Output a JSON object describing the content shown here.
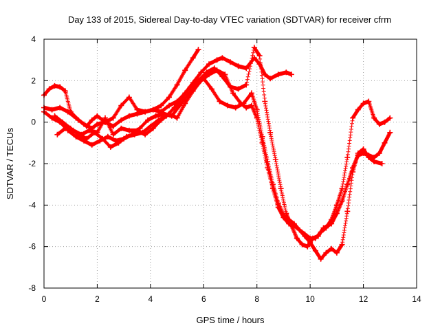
{
  "chart_data": {
    "type": "scatter",
    "title": "Day 133 of 2015, Sidereal Day-to-day VTEC variation (SDTVAR) for receiver cfrm",
    "xlabel": "GPS time / hours",
    "ylabel": "SDTVAR / TECUs",
    "xlim": [
      0,
      14
    ],
    "ylim": [
      -8,
      4
    ],
    "xticks": [
      "0",
      "2",
      "4",
      "6",
      "8",
      "10",
      "12",
      "14"
    ],
    "yticks": [
      "-8",
      "-6",
      "-4",
      "-2",
      "0",
      "2",
      "4"
    ],
    "grid": true,
    "legend": "none",
    "marker": "+",
    "color": "#ff0000",
    "series": [
      {
        "x": [
          0.0,
          0.2,
          0.4,
          0.6,
          0.8,
          1.0,
          1.3,
          1.6,
          1.8,
          2.0,
          2.3,
          2.6,
          2.9,
          3.2,
          3.5,
          3.8,
          4.1,
          4.4,
          4.7,
          5.0,
          5.3,
          5.6,
          5.8
        ],
        "y": [
          1.3,
          1.6,
          1.75,
          1.7,
          1.5,
          0.5,
          0.1,
          -0.2,
          0.1,
          0.3,
          0.0,
          -0.2,
          0.1,
          0.3,
          0.4,
          0.5,
          0.6,
          0.8,
          1.2,
          1.8,
          2.5,
          3.1,
          3.5
        ]
      },
      {
        "x": [
          0.0,
          0.3,
          0.6,
          0.9,
          1.2,
          1.5,
          1.8,
          2.0,
          2.3,
          2.6,
          2.9,
          3.2,
          3.5,
          3.8,
          4.1,
          4.4,
          4.7,
          5.0,
          5.3,
          5.6,
          5.9,
          6.2,
          6.5,
          6.7,
          7.0,
          7.3,
          7.6,
          7.9,
          8.1,
          8.3,
          8.5,
          8.8,
          9.1,
          9.3
        ],
        "y": [
          0.7,
          0.6,
          0.7,
          0.5,
          0.2,
          -0.1,
          -0.3,
          -0.1,
          0.0,
          0.2,
          0.8,
          1.2,
          0.6,
          0.5,
          0.6,
          0.5,
          0.8,
          1.0,
          1.4,
          1.9,
          2.4,
          2.8,
          3.0,
          3.1,
          2.9,
          2.7,
          2.6,
          3.1,
          2.8,
          2.3,
          2.1,
          2.3,
          2.4,
          2.3
        ]
      },
      {
        "x": [
          0.4,
          0.7,
          1.0,
          1.3,
          1.6,
          1.9,
          2.2,
          2.5,
          2.8,
          3.1,
          3.4,
          3.7,
          4.0,
          4.3,
          4.6,
          4.9,
          5.2,
          5.5,
          5.8,
          6.1,
          6.4,
          6.7,
          7.0,
          7.3,
          7.6,
          7.9,
          8.1,
          8.3,
          8.5,
          8.7,
          8.9,
          9.1,
          9.3,
          9.5,
          9.7,
          9.9,
          10.1,
          10.3,
          10.5,
          10.8,
          11.0,
          11.2,
          11.4,
          11.6,
          11.8,
          12.0,
          12.2,
          12.4,
          12.6,
          12.8,
          13.0
        ],
        "y": [
          0.3,
          0.0,
          -0.3,
          -0.6,
          -0.8,
          -0.5,
          -0.8,
          -1.2,
          -1.0,
          -0.7,
          -0.6,
          -0.5,
          -0.2,
          0.1,
          0.3,
          0.7,
          1.2,
          1.7,
          2.0,
          2.4,
          2.6,
          2.2,
          1.7,
          1.6,
          1.8,
          3.6,
          3.2,
          1.0,
          -0.5,
          -1.8,
          -3.2,
          -4.4,
          -5.0,
          -5.6,
          -5.9,
          -6.0,
          -5.6,
          -5.5,
          -5.1,
          -4.9,
          -4.4,
          -3.8,
          -3.0,
          -2.2,
          -1.6,
          -1.5,
          -1.6,
          -1.7,
          -1.5,
          -1.0,
          -0.5
        ]
      },
      {
        "x": [
          0.0,
          0.3,
          0.6,
          0.9,
          1.2,
          1.5,
          1.8,
          2.1,
          2.4,
          2.7,
          3.0,
          3.3,
          3.6,
          3.9,
          4.2,
          4.5,
          4.8,
          5.1,
          5.4,
          5.7,
          6.0,
          6.3,
          6.6,
          6.9,
          7.2,
          7.5,
          7.8,
          8.0,
          8.2,
          8.4,
          8.6,
          8.8,
          9.0,
          9.2,
          9.4,
          9.6,
          9.8,
          10.0,
          10.2,
          10.4,
          10.6,
          10.8,
          11.0,
          11.2,
          11.4,
          11.6,
          11.8,
          12.0,
          12.2,
          12.4,
          12.7
        ],
        "y": [
          0.5,
          0.2,
          0.0,
          -0.4,
          -0.7,
          -0.9,
          -1.1,
          -0.9,
          -0.7,
          -0.9,
          -0.8,
          -0.6,
          -0.3,
          0.1,
          0.3,
          0.4,
          0.3,
          0.8,
          1.3,
          1.8,
          2.1,
          1.6,
          1.0,
          0.8,
          0.7,
          0.9,
          1.4,
          0.6,
          -0.7,
          -1.9,
          -3.0,
          -3.9,
          -4.5,
          -4.7,
          -4.9,
          -5.2,
          -5.5,
          -5.8,
          -6.2,
          -6.6,
          -6.3,
          -6.1,
          -6.3,
          -5.9,
          -4.3,
          -2.4,
          -1.5,
          -1.3,
          -1.7,
          -1.9,
          -2.0
        ]
      },
      {
        "x": [
          0.5,
          0.8,
          1.1,
          1.4,
          1.7,
          2.0,
          2.3,
          2.6,
          2.9,
          3.2,
          3.5,
          3.8,
          4.1,
          4.4,
          4.7,
          5.0,
          5.3,
          5.6,
          5.9,
          6.2,
          6.5,
          6.8,
          7.1,
          7.4,
          7.6,
          7.8,
          8.0,
          8.2,
          8.4,
          8.6,
          8.8,
          9.0,
          9.2,
          9.4,
          9.6,
          9.8,
          10.0,
          10.2,
          10.4,
          10.6,
          10.8,
          11.0,
          11.2,
          11.4,
          11.6,
          11.8,
          12.0,
          12.2,
          12.4,
          12.6,
          12.8,
          13.0
        ],
        "y": [
          -0.6,
          -0.3,
          -0.4,
          -0.6,
          -0.4,
          -0.5,
          0.2,
          -0.6,
          -0.3,
          -0.4,
          -0.4,
          -0.6,
          -0.3,
          0.1,
          0.4,
          0.2,
          0.9,
          1.5,
          2.0,
          2.3,
          2.5,
          2.3,
          1.4,
          0.9,
          0.7,
          0.8,
          0.2,
          -1.0,
          -2.2,
          -3.2,
          -4.1,
          -4.6,
          -4.9,
          -5.0,
          -5.2,
          -5.4,
          -5.6,
          -5.6,
          -5.3,
          -5.1,
          -4.7,
          -4.0,
          -3.2,
          -1.7,
          0.2,
          0.6,
          0.9,
          1.0,
          0.2,
          -0.1,
          0.0,
          0.2
        ]
      }
    ]
  }
}
